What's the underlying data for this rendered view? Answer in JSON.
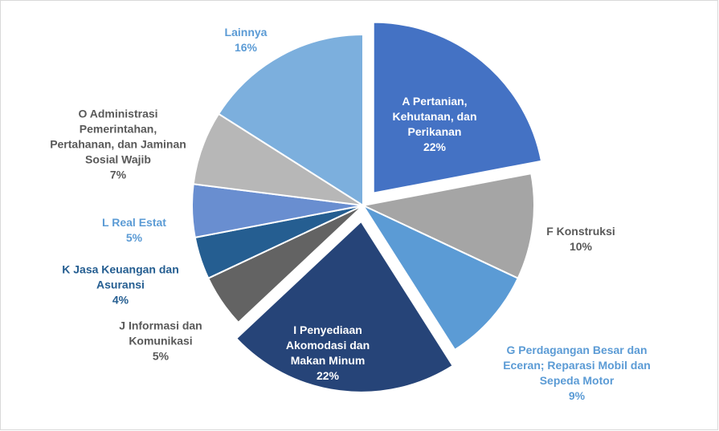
{
  "chart_data": {
    "type": "pie",
    "categories": [
      "A  Pertanian, Kehutanan, dan Perikanan",
      "F  Konstruksi",
      "G  Perdagangan Besar dan Eceran; Reparasi Mobil dan Sepeda Motor",
      "I  Penyediaan Akomodasi dan Makan Minum",
      "J  Informasi dan Komunikasi",
      "K  Jasa Keuangan dan Asuransi",
      "L  Real Estat",
      "O  Administrasi Pemerintahan, Pertahanan, dan Jaminan Sosial Wajib",
      "Lainnya"
    ],
    "values": [
      22,
      10,
      9,
      22,
      5,
      4,
      5,
      7,
      16
    ],
    "value_labels": [
      "22%",
      "10%",
      "9%",
      "22%",
      "5%",
      "4%",
      "5%",
      "7%",
      "16%"
    ],
    "colors": [
      "#4472c4",
      "#a5a5a5",
      "#5b9bd5",
      "#264478",
      "#636363",
      "#255e91",
      "#698ed0",
      "#b7b7b7",
      "#7cafdd"
    ],
    "label_colors": [
      "#ffffff",
      "#595959",
      "#5b9bd5",
      "#ffffff",
      "#595959",
      "#255e91",
      "#5b9bd5",
      "#595959",
      "#5b9bd5"
    ],
    "exploded": [
      true,
      false,
      false,
      true,
      false,
      false,
      false,
      false,
      false
    ]
  }
}
